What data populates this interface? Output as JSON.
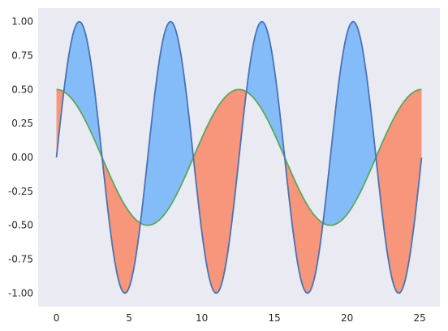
{
  "chart_data": {
    "type": "area",
    "title": "",
    "xlabel": "",
    "ylabel": "",
    "xlim": [
      -1.26,
      26.39
    ],
    "ylim": [
      -1.1,
      1.1
    ],
    "x_ticks": [
      0,
      5,
      10,
      15,
      20,
      25
    ],
    "x_tick_labels": [
      "0",
      "5",
      "10",
      "15",
      "20",
      "25"
    ],
    "y_ticks": [
      1.0,
      0.75,
      0.5,
      0.25,
      0.0,
      -0.25,
      -0.5,
      -0.75,
      -1.0
    ],
    "y_tick_labels": [
      "1.00",
      "0.75",
      "0.50",
      "0.25",
      "0.00",
      "-0.25",
      "-0.50",
      "-0.75",
      "-1.00"
    ],
    "grid": false,
    "background": "#eaeaf2",
    "x": {
      "start": 0,
      "end": 25.13,
      "samples": 400
    },
    "series": [
      {
        "function": "sin(x)",
        "color": "#4c72b0",
        "values_at_ticks": {
          "0": 0.0,
          "5": -0.96,
          "10": -0.54,
          "15": 0.65,
          "20": 0.91,
          "25": -0.13
        }
      },
      {
        "function": "0.5*cos(x/2)",
        "color": "#55a868",
        "values_at_ticks": {
          "0": 0.5,
          "5": -0.4,
          "10": 0.14,
          "15": 0.17,
          "20": -0.42,
          "25": 0.5
        }
      }
    ],
    "fill_between": {
      "where_first_above": "#84bcfa",
      "where_first_below": "#f7967a"
    }
  }
}
